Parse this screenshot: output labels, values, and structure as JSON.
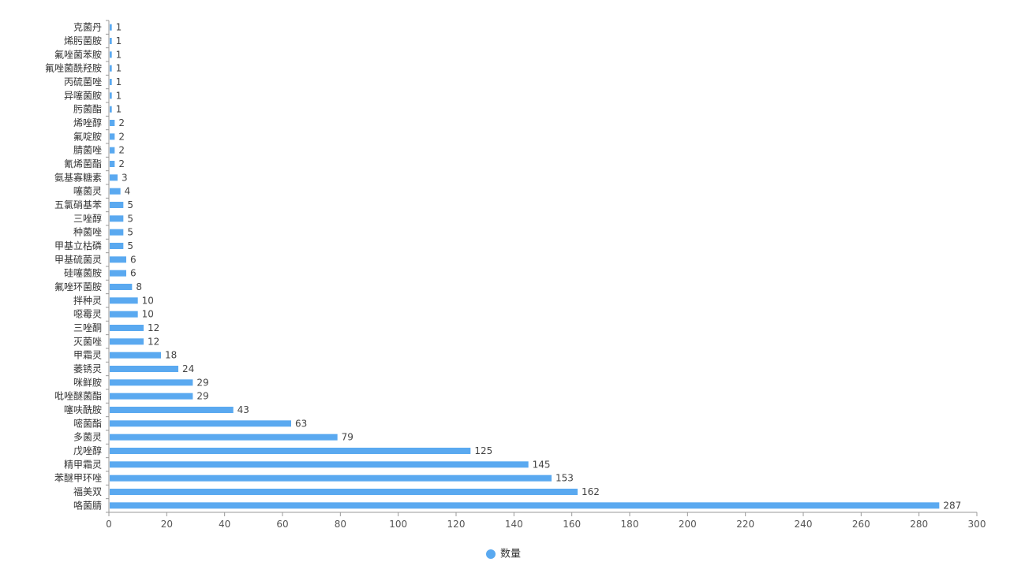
{
  "chart_data": {
    "type": "bar",
    "orientation": "horizontal",
    "categories": [
      "克菌丹",
      "烯肟菌胺",
      "氟唑菌苯胺",
      "氟唑菌酰羟胺",
      "丙硫菌唑",
      "异噻菌胺",
      "肟菌酯",
      "烯唑醇",
      "氟啶胺",
      "腈菌唑",
      "氰烯菌酯",
      "氨基寡糖素",
      "噻菌灵",
      "五氯硝基苯",
      "三唑醇",
      "种菌唑",
      "甲基立枯磷",
      "甲基硫菌灵",
      "硅噻菌胺",
      "氟唑环菌胺",
      "拌种灵",
      "噁霉灵",
      "三唑酮",
      "灭菌唑",
      "甲霜灵",
      "萎锈灵",
      "咪鲜胺",
      "吡唑醚菌酯",
      "噻呋酰胺",
      "嘧菌酯",
      "多菌灵",
      "戊唑醇",
      "精甲霜灵",
      "苯醚甲环唑",
      "福美双",
      "咯菌腈"
    ],
    "series": [
      {
        "name": "数量",
        "values": [
          1,
          1,
          1,
          1,
          1,
          1,
          1,
          2,
          2,
          2,
          2,
          3,
          4,
          5,
          5,
          5,
          5,
          6,
          6,
          8,
          10,
          10,
          12,
          12,
          18,
          24,
          29,
          29,
          43,
          63,
          79,
          125,
          145,
          153,
          162,
          287
        ]
      }
    ],
    "xlim": [
      0,
      300
    ],
    "xticks": [
      0,
      20,
      40,
      60,
      80,
      100,
      120,
      140,
      160,
      180,
      200,
      220,
      240,
      260,
      280,
      300
    ],
    "legend_position": "bottom-center",
    "bar_color": "#5aa9f0",
    "show_data_labels": true,
    "grid": false
  }
}
